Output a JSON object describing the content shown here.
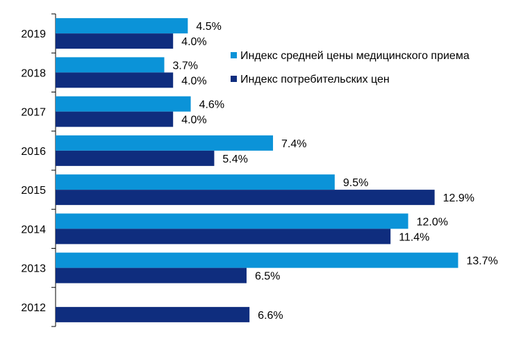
{
  "chart_data": {
    "type": "bar",
    "orientation": "horizontal",
    "categories": [
      "2019",
      "2018",
      "2017",
      "2016",
      "2015",
      "2014",
      "2013",
      "2012"
    ],
    "series": [
      {
        "name": "Индекс средней цены медицинского приема",
        "color": "#0B93D8",
        "values": [
          4.5,
          3.7,
          4.6,
          7.4,
          9.5,
          12.0,
          13.7,
          null
        ],
        "labels": [
          "4.5%",
          "3.7%",
          "4.6%",
          "7.4%",
          "9.5%",
          "12.0%",
          "13.7%",
          ""
        ]
      },
      {
        "name": "Индекс потребительских цен",
        "color": "#0F2D7E",
        "values": [
          4.0,
          4.0,
          4.0,
          5.4,
          12.9,
          11.4,
          6.5,
          6.6
        ],
        "labels": [
          "4.0%",
          "4.0%",
          "4.0%",
          "5.4%",
          "12.9%",
          "11.4%",
          "6.5%",
          "6.6%"
        ]
      }
    ],
    "xlim": [
      0,
      16
    ],
    "legend": {
      "position": "top-right",
      "items": [
        {
          "label": "Индекс средней цены медицинского приема",
          "color": "#0B93D8"
        },
        {
          "label": "Индекс потребительских цен",
          "color": "#0F2D7E"
        }
      ]
    },
    "grid": false,
    "title": "",
    "xlabel": "",
    "ylabel": ""
  }
}
